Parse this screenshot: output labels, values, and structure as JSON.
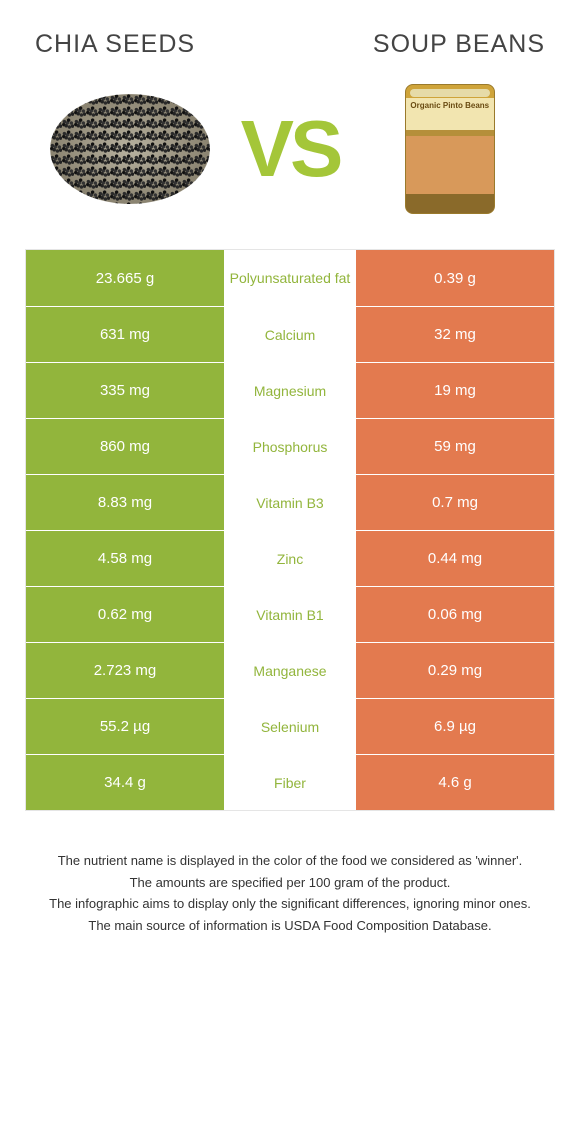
{
  "colors": {
    "left_bg": "#92b53c",
    "right_bg": "#e37a4f",
    "mid_text_left": "#92b53c",
    "mid_text_right": "#e37a4f"
  },
  "header": {
    "left_title": "Chia seeds",
    "right_title": "Soup beans",
    "vs": "VS"
  },
  "rows": [
    {
      "nutrient": "Polyunsaturated fat",
      "left": "23.665 g",
      "right": "0.39 g",
      "winner": "left"
    },
    {
      "nutrient": "Calcium",
      "left": "631 mg",
      "right": "32 mg",
      "winner": "left"
    },
    {
      "nutrient": "Magnesium",
      "left": "335 mg",
      "right": "19 mg",
      "winner": "left"
    },
    {
      "nutrient": "Phosphorus",
      "left": "860 mg",
      "right": "59 mg",
      "winner": "left"
    },
    {
      "nutrient": "Vitamin B3",
      "left": "8.83 mg",
      "right": "0.7 mg",
      "winner": "left"
    },
    {
      "nutrient": "Zinc",
      "left": "4.58 mg",
      "right": "0.44 mg",
      "winner": "left"
    },
    {
      "nutrient": "Vitamin B1",
      "left": "0.62 mg",
      "right": "0.06 mg",
      "winner": "left"
    },
    {
      "nutrient": "Manganese",
      "left": "2.723 mg",
      "right": "0.29 mg",
      "winner": "left"
    },
    {
      "nutrient": "Selenium",
      "left": "55.2 µg",
      "right": "6.9 µg",
      "winner": "left"
    },
    {
      "nutrient": "Fiber",
      "left": "34.4 g",
      "right": "4.6 g",
      "winner": "left"
    }
  ],
  "footer": {
    "line1": "The nutrient name is displayed in the color of the food we considered as 'winner'.",
    "line2": "The amounts are specified per 100 gram of the product.",
    "line3": "The infographic aims to display only the significant differences, ignoring minor ones.",
    "line4": "The main source of information is USDA Food Composition Database."
  }
}
